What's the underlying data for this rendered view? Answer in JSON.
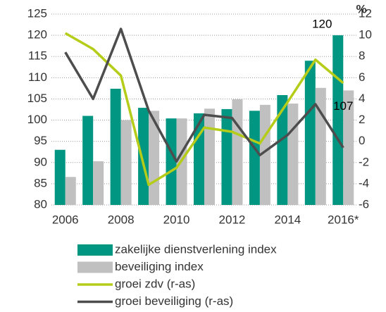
{
  "chart_data": {
    "type": "bar",
    "categories": [
      "2006",
      null,
      "2008",
      null,
      "2010",
      null,
      "2012",
      null,
      "2014",
      null,
      "2016*"
    ],
    "series": [
      {
        "name": "zakelijke dienstverlening index",
        "color": "#009682",
        "type": "bar",
        "values": [
          93,
          101,
          107.4,
          102.9,
          100.4,
          101.6,
          102.6,
          102.2,
          105.9,
          114,
          120
        ]
      },
      {
        "name": "beveiliging index",
        "color": "#c0c0c0",
        "type": "bar",
        "values": [
          86.6,
          90.3,
          100,
          102.2,
          100.4,
          102.7,
          104.9,
          103.6,
          103.9,
          107.6,
          107
        ]
      },
      {
        "name": "groei zdv (r-as)",
        "color": "#b5cc18",
        "type": "line",
        "axis": "y2",
        "values": [
          10.2,
          8.7,
          6.2,
          -4.1,
          -2.5,
          1.3,
          0.9,
          -0.2,
          3.7,
          7.7,
          5.5
        ]
      },
      {
        "name": "groei beveiliging (r-as)",
        "color": "#4d4d4d",
        "type": "line",
        "axis": "y2",
        "values": [
          8.4,
          4.0,
          10.6,
          2.9,
          -1.9,
          2.5,
          2.2,
          -1.3,
          0.6,
          3.5,
          -0.6
        ]
      }
    ],
    "ylim": [
      80,
      125
    ],
    "yticks": [
      80,
      85,
      90,
      95,
      100,
      105,
      110,
      115,
      120,
      125
    ],
    "y2lim": [
      -6,
      12
    ],
    "y2ticks": [
      -6,
      -4,
      -2,
      0,
      2,
      4,
      6,
      8,
      10,
      12
    ],
    "y2label": "%",
    "grid": true
  }
}
